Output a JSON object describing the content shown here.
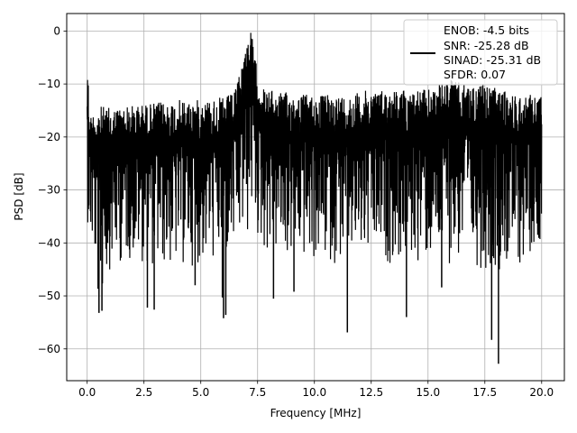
{
  "chart_data": {
    "type": "line",
    "title": "",
    "xlabel": "Frequency [MHz]",
    "ylabel": "PSD [dB]",
    "xlim": [
      -0.9,
      21.0
    ],
    "ylim": [
      -66,
      3.3
    ],
    "xticks": [
      0.0,
      2.5,
      5.0,
      7.5,
      10.0,
      12.5,
      15.0,
      17.5,
      20.0
    ],
    "xtick_labels": [
      "0.0",
      "2.5",
      "5.0",
      "7.5",
      "10.0",
      "12.5",
      "15.0",
      "17.5",
      "20.0"
    ],
    "yticks": [
      0,
      -10,
      -20,
      -30,
      -40,
      -50,
      -60
    ],
    "ytick_labels": [
      "0",
      "−10",
      "−20",
      "−30",
      "−40",
      "−50",
      "−60"
    ],
    "grid": true,
    "legend_position": "top-right",
    "legend_lines": [
      "ENOB: -4.5 bits",
      "SNR: -25.28 dB",
      "SINAD: -25.31 dB",
      "SFDR: 0.07"
    ],
    "series": [
      {
        "color": "#000000",
        "description": "noise-like PSD spectrum",
        "x": [
          0.0,
          0.02,
          0.05,
          0.1,
          0.3,
          0.5,
          1.0,
          2.0,
          3.0,
          4.0,
          5.0,
          6.0,
          6.5,
          6.9,
          7.1,
          7.2,
          7.3,
          7.5,
          7.8,
          8.5,
          10.0,
          11.5,
          12.5,
          14.0,
          15.0,
          16.0,
          16.5,
          17.5,
          18.1,
          19.0,
          20.0
        ],
        "upper": [
          -10,
          -3,
          -9,
          -16,
          -15,
          -14,
          -14.5,
          -14,
          -13.5,
          -13,
          -13,
          -12.5,
          -11.5,
          -4,
          0,
          0,
          -2,
          -8,
          -11,
          -11.5,
          -12,
          -12,
          -11,
          -11,
          -11,
          -9,
          -10,
          -10,
          -11,
          -12,
          -12
        ],
        "lower": [
          -36,
          -36,
          -38,
          -41,
          -44,
          -53,
          -45,
          -43,
          -45,
          -45,
          -44,
          -44,
          -43,
          -40,
          -40,
          -35,
          -36,
          -40,
          -42,
          -43,
          -44,
          -44,
          -44,
          -44,
          -44,
          -44,
          -44,
          -45,
          -45,
          -45,
          -39
        ],
        "dips": [
          [
            0.52,
            -53.2
          ],
          [
            0.65,
            -52.8
          ],
          [
            2.65,
            -52.2
          ],
          [
            2.95,
            -52.6
          ],
          [
            4.75,
            -48.0
          ],
          [
            5.95,
            -50.3
          ],
          [
            6.0,
            -54.2
          ],
          [
            6.1,
            -53.6
          ],
          [
            8.2,
            -50.5
          ],
          [
            9.1,
            -49.2
          ],
          [
            11.45,
            -56.9
          ],
          [
            14.05,
            -54.0
          ],
          [
            15.6,
            -48.4
          ],
          [
            17.8,
            -58.3
          ],
          [
            18.1,
            -62.8
          ]
        ]
      }
    ]
  }
}
